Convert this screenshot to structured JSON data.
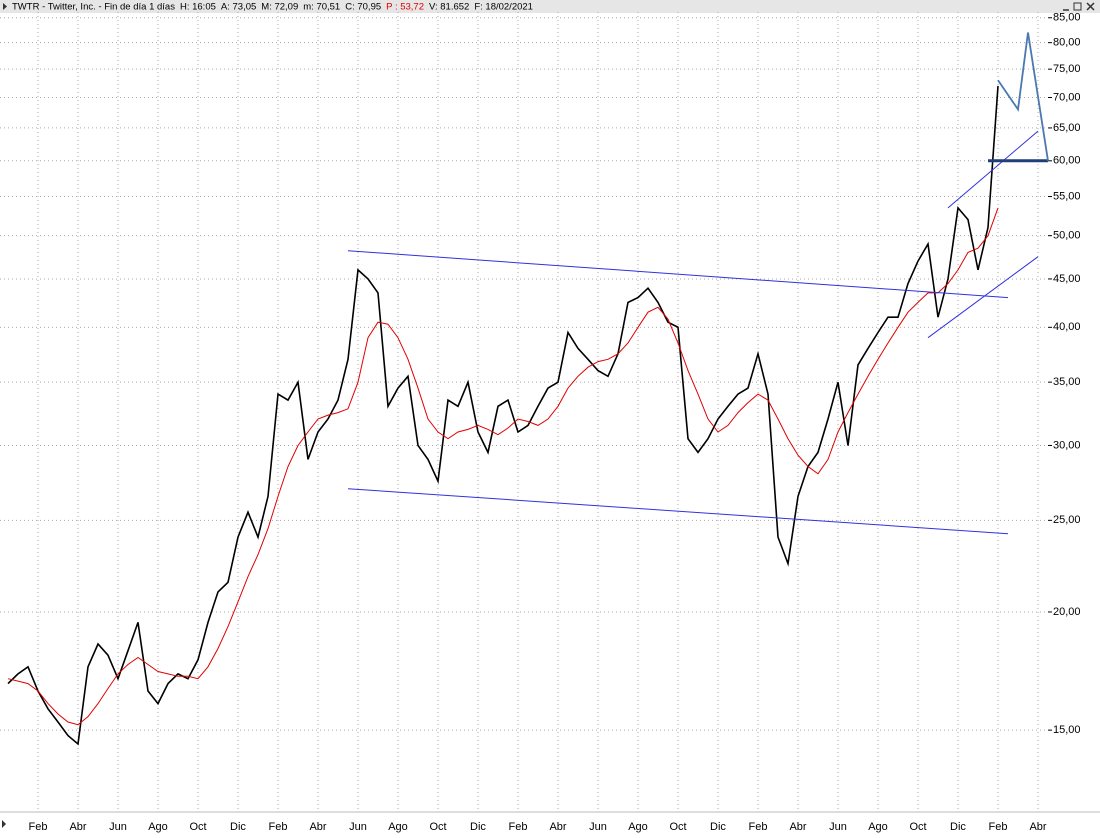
{
  "chart_data": {
    "type": "line",
    "title": "TWTR - Twitter, Inc. - Fin de día 1 días",
    "info": [
      "H: 16:05",
      "A: 73,05",
      "M: 72,09",
      "m: 70,51",
      "C: 70,95",
      "P : 53,72",
      "V: 81.652",
      "F: 18/02/2021"
    ],
    "log_y": true,
    "grid": true,
    "categories": [
      null,
      null,
      null,
      "Feb",
      null,
      null,
      null,
      "Abr",
      null,
      null,
      null,
      "Jun",
      null,
      null,
      null,
      "Ago",
      null,
      null,
      null,
      "Oct",
      null,
      null,
      null,
      "Dic",
      null,
      null,
      null,
      "Feb",
      null,
      null,
      null,
      "Abr",
      null,
      null,
      null,
      "Jun",
      null,
      null,
      null,
      "Ago",
      null,
      null,
      null,
      "Oct",
      null,
      null,
      null,
      "Dic",
      null,
      null,
      null,
      "Feb",
      null,
      null,
      null,
      "Abr",
      null,
      null,
      null,
      "Jun",
      null,
      null,
      null,
      "Ago",
      null,
      null,
      null,
      "Oct",
      null,
      null,
      null,
      "Dic",
      null,
      null,
      null,
      "Feb",
      null,
      null,
      null,
      "Abr",
      null,
      null,
      null,
      "Jun",
      null,
      null,
      null,
      "Ago",
      null,
      null,
      null,
      "Oct",
      null,
      null,
      null,
      "Dic",
      null,
      null,
      null,
      "Feb",
      null,
      null,
      null,
      "Abr",
      null
    ],
    "series": [
      {
        "color": "#000000",
        "values": [
          16.8,
          17.2,
          17.5,
          16.5,
          15.8,
          15.3,
          14.8,
          14.5,
          17.5,
          18.5,
          18.0,
          17.0,
          18.2,
          19.5,
          16.5,
          16.0,
          16.8,
          17.2,
          17.0,
          17.8,
          19.5,
          21.0,
          21.5,
          24.0,
          25.5,
          24.0,
          26.5,
          34.0,
          33.5,
          35.0,
          29.0,
          31.0,
          32.0,
          33.5,
          37.0,
          46.0,
          45.0,
          43.5,
          33.0,
          34.5,
          35.5,
          30.0,
          29.0,
          27.5,
          33.5,
          33.0,
          35.0,
          31.0,
          29.5,
          33.0,
          33.5,
          31.0,
          31.5,
          33.0,
          34.5,
          35.0,
          39.5,
          38.0,
          37.0,
          36.0,
          35.5,
          37.5,
          42.5,
          43.0,
          44.0,
          42.5,
          40.5,
          40.0,
          30.5,
          29.5,
          30.5,
          32.0,
          33.0,
          34.0,
          34.5,
          37.5,
          34.0,
          24.0,
          22.5,
          26.5,
          28.5,
          29.5,
          32.0,
          35.0,
          30.0,
          36.5,
          38.0,
          39.5,
          41.0,
          41.0,
          44.5,
          47.0,
          49.0,
          41.0,
          45.0,
          53.5,
          52.0,
          46.0,
          51.0,
          72.0,
          null,
          null,
          null,
          null,
          null
        ]
      },
      {
        "color": "#e00000",
        "values": [
          17.0,
          16.9,
          16.8,
          16.5,
          16.0,
          15.6,
          15.3,
          15.2,
          15.5,
          16.0,
          16.6,
          17.2,
          17.6,
          17.9,
          17.6,
          17.3,
          17.2,
          17.1,
          17.1,
          17.0,
          17.5,
          18.3,
          19.3,
          20.5,
          21.8,
          23.0,
          24.5,
          26.5,
          28.5,
          30.0,
          31.0,
          32.0,
          32.3,
          32.5,
          32.8,
          35.0,
          39.0,
          40.5,
          40.3,
          39.0,
          37.0,
          34.5,
          32.0,
          31.0,
          30.5,
          31.0,
          31.2,
          31.5,
          31.2,
          30.8,
          31.3,
          32.0,
          31.8,
          31.5,
          32.0,
          33.0,
          34.5,
          35.5,
          36.3,
          36.8,
          37.0,
          37.5,
          38.5,
          40.0,
          41.5,
          42.0,
          40.8,
          38.5,
          36.0,
          34.0,
          32.0,
          31.0,
          31.5,
          32.5,
          33.3,
          34.0,
          33.5,
          32.0,
          30.5,
          29.3,
          28.5,
          28.0,
          29.0,
          31.0,
          32.5,
          34.0,
          35.5,
          37.0,
          38.5,
          40.0,
          41.5,
          42.5,
          43.5,
          43.5,
          44.5,
          46.0,
          48.0,
          48.5,
          50.0,
          53.5,
          null,
          null,
          null,
          null,
          null
        ]
      }
    ],
    "lines": [
      {
        "color": "#3030e0",
        "x": [
          34,
          100
        ],
        "y": [
          48.2,
          43.0
        ]
      },
      {
        "color": "#3030e0",
        "x": [
          34,
          100
        ],
        "y": [
          27.0,
          24.2
        ]
      },
      {
        "color": "#3030e0",
        "x": [
          94,
          103
        ],
        "y": [
          53.5,
          64.5
        ]
      },
      {
        "color": "#3030e0",
        "x": [
          92,
          103
        ],
        "y": [
          39.0,
          47.5
        ]
      },
      {
        "color": "#1f3f7a",
        "x": [
          98,
          104
        ],
        "y": [
          60,
          60
        ]
      },
      {
        "color": "#4a78b0",
        "x": [
          99,
          101,
          102,
          104
        ],
        "y": [
          73,
          68,
          82,
          60
        ]
      }
    ],
    "ylim": [
      12.5,
      86.2
    ],
    "yticks": [
      {
        "value": 15,
        "label": "15,00"
      },
      {
        "value": 20,
        "label": "20,00"
      },
      {
        "value": 25,
        "label": "25,00"
      },
      {
        "value": 30,
        "label": "30,00"
      },
      {
        "value": 35,
        "label": "35,00"
      },
      {
        "value": 40,
        "label": "40,00"
      },
      {
        "value": 45,
        "label": "45,00"
      },
      {
        "value": 50,
        "label": "50,00"
      },
      {
        "value": 55,
        "label": "55,00"
      },
      {
        "value": 60,
        "label": "60,00"
      },
      {
        "value": 65,
        "label": "65,00"
      },
      {
        "value": 70,
        "label": "70,00"
      },
      {
        "value": 75,
        "label": "75,00"
      },
      {
        "value": 80,
        "label": "80,00"
      },
      {
        "value": 85,
        "label": "85,00"
      }
    ]
  }
}
